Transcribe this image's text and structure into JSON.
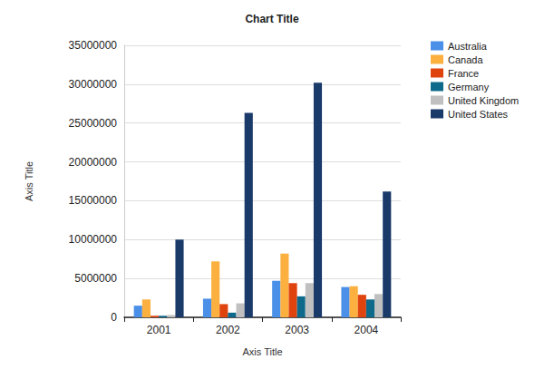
{
  "chart_data": {
    "type": "bar",
    "title": "Chart Title",
    "x_label": "Axis Title",
    "y_label": "Axis Title",
    "categories": [
      "2001",
      "2002",
      "2003",
      "2004"
    ],
    "series": [
      {
        "name": "Australia",
        "color": "#4a8fe8",
        "values": [
          1500000,
          2400000,
          4700000,
          3900000
        ]
      },
      {
        "name": "Canada",
        "color": "#fbb040",
        "values": [
          2300000,
          7200000,
          8200000,
          4000000
        ]
      },
      {
        "name": "France",
        "color": "#e0440e",
        "values": [
          200000,
          1700000,
          4400000,
          2900000
        ]
      },
      {
        "name": "Germany",
        "color": "#0e6a8a",
        "values": [
          200000,
          600000,
          2700000,
          2300000
        ]
      },
      {
        "name": "United Kingdom",
        "color": "#c0c0c0",
        "values": [
          300000,
          1800000,
          4400000,
          3000000
        ]
      },
      {
        "name": "United States",
        "color": "#1a3a6a",
        "values": [
          10000000,
          26300000,
          30200000,
          16200000
        ]
      }
    ],
    "ylim": [
      0,
      35000000
    ],
    "yticks": [
      0,
      5000000,
      10000000,
      15000000,
      20000000,
      25000000,
      30000000,
      35000000
    ],
    "grid": true,
    "legend": "right"
  }
}
